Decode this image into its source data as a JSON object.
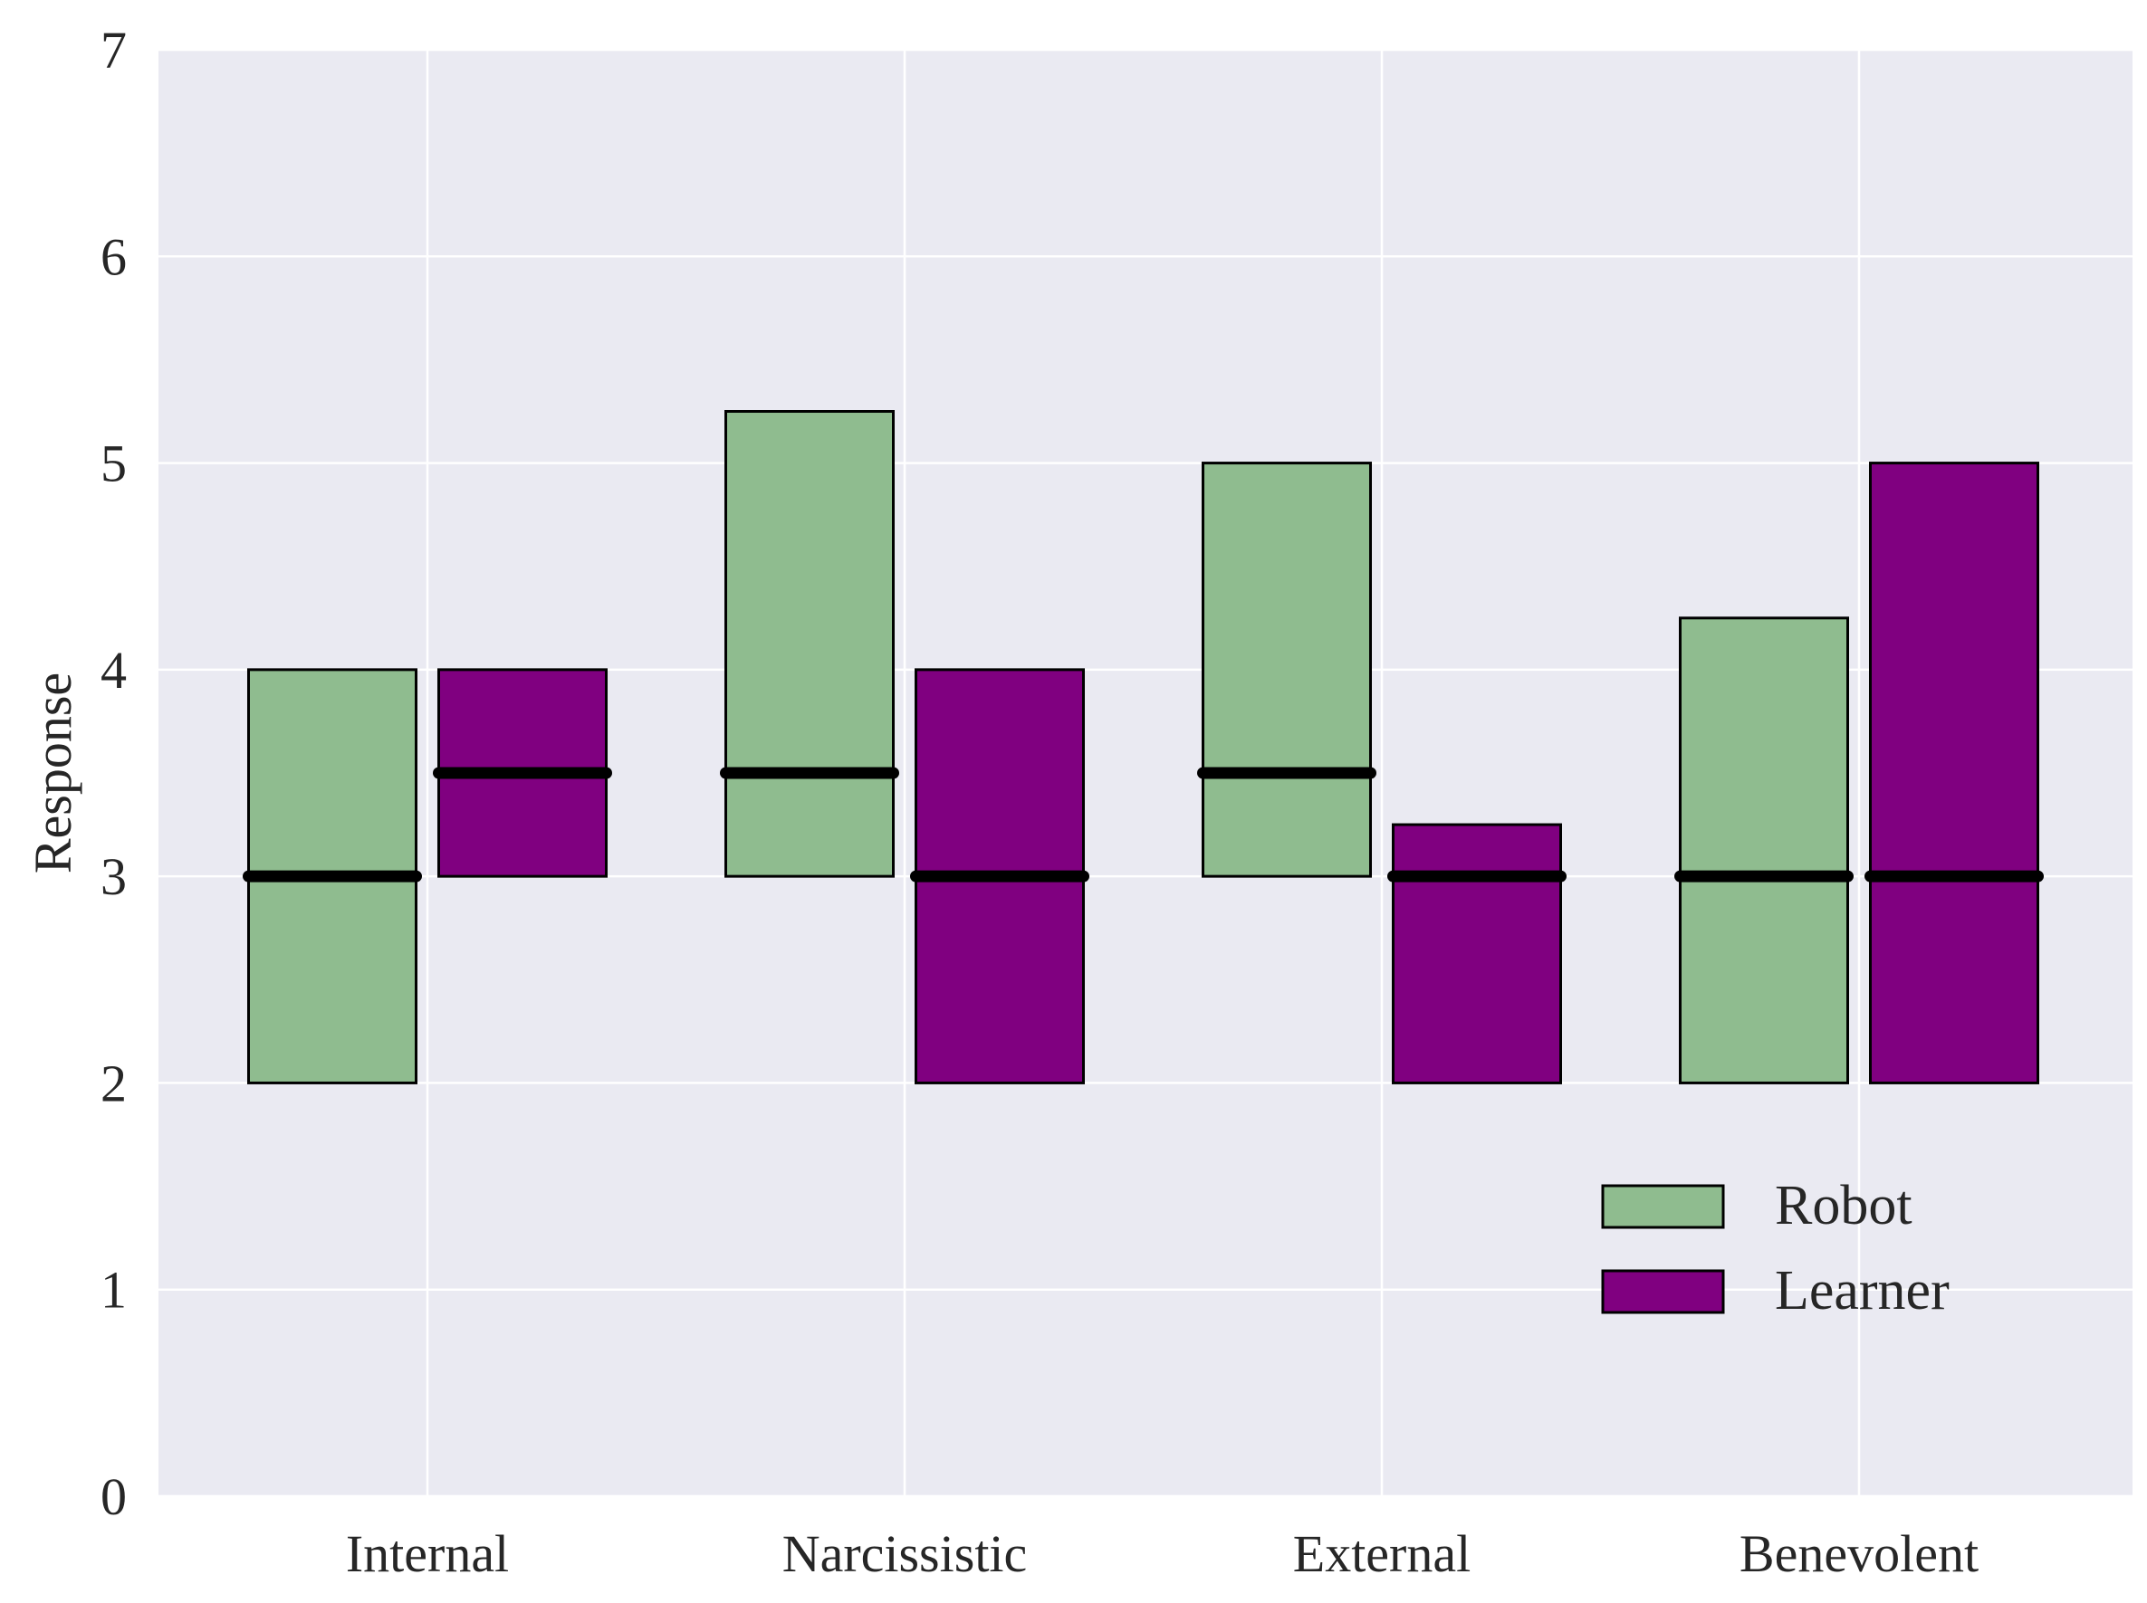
{
  "chart_data": {
    "type": "box",
    "title": "",
    "xlabel": "",
    "ylabel": "Response",
    "ylim": [
      0,
      7
    ],
    "yticks": [
      "0",
      "1",
      "2",
      "3",
      "4",
      "5",
      "6",
      "7"
    ],
    "categories": [
      "Internal",
      "Narcissistic",
      "External",
      "Benevolent"
    ],
    "grid": true,
    "legend_position": "lower-right",
    "series": [
      {
        "name": "Robot",
        "color": "#8fbc8f",
        "boxes": [
          {
            "q1": 2,
            "q3": 4,
            "median": 3
          },
          {
            "q1": 3,
            "q3": 5.25,
            "median": 3.5
          },
          {
            "q1": 3,
            "q3": 5,
            "median": 3.5
          },
          {
            "q1": 2,
            "q3": 4.25,
            "median": 3
          }
        ]
      },
      {
        "name": "Learner",
        "color": "#800080",
        "boxes": [
          {
            "q1": 3,
            "q3": 4,
            "median": 3.5
          },
          {
            "q1": 2,
            "q3": 4,
            "median": 3
          },
          {
            "q1": 2,
            "q3": 3.25,
            "median": 3
          },
          {
            "q1": 2,
            "q3": 5,
            "median": 3
          }
        ]
      }
    ],
    "colors": {
      "plot_background": "#eaeaf2",
      "grid": "#ffffff",
      "edge": "#000000",
      "median": "#000000"
    }
  }
}
